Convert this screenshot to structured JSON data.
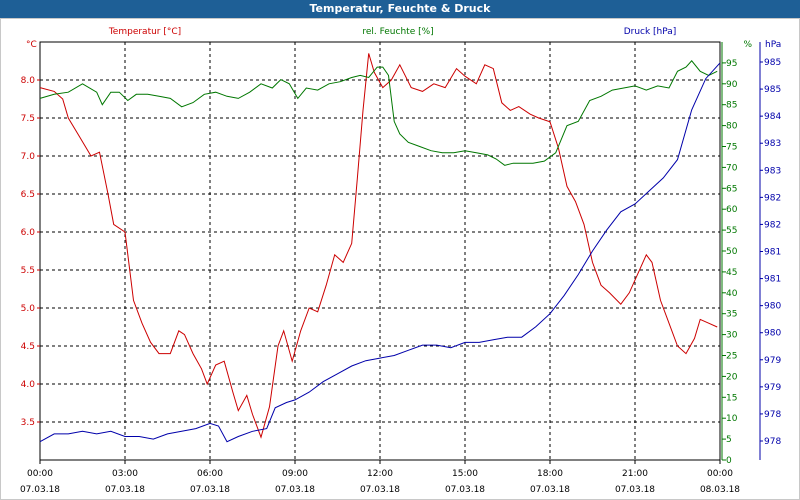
{
  "window": {
    "title": "Temperatur, Feuchte & Druck"
  },
  "chart_data": {
    "type": "line",
    "title": "Temperatur, Feuchte & Druck",
    "colors": {
      "temperature": "#cc0000",
      "humidity": "#007700",
      "pressure": "#0000aa"
    },
    "x_ticks": [
      {
        "time": "00:00",
        "date": "07.03.18"
      },
      {
        "time": "03:00",
        "date": "07.03.18"
      },
      {
        "time": "06:00",
        "date": "07.03.18"
      },
      {
        "time": "09:00",
        "date": "07.03.18"
      },
      {
        "time": "12:00",
        "date": "07.03.18"
      },
      {
        "time": "15:00",
        "date": "07.03.18"
      },
      {
        "time": "18:00",
        "date": "07.03.18"
      },
      {
        "time": "21:00",
        "date": "07.03.18"
      },
      {
        "time": "00:00",
        "date": "08.03.18"
      }
    ],
    "xlim": [
      0,
      24
    ],
    "axes": {
      "temperature": {
        "label": "Temperatur [°C]",
        "unit": "°C",
        "ylim": [
          3.0,
          8.5
        ],
        "ticks": [
          "3.5",
          "4.0",
          "4.5",
          "5.0",
          "5.5",
          "6.0",
          "6.5",
          "7.0",
          "7.5",
          "8.0"
        ]
      },
      "humidity": {
        "label": "rel. Feuchte [%]",
        "unit": "%",
        "ylim": [
          0,
          100
        ],
        "ticks": [
          "0",
          "5",
          "10",
          "15",
          "20",
          "25",
          "30",
          "35",
          "40",
          "45",
          "50",
          "55",
          "60",
          "65",
          "70",
          "75",
          "80",
          "85",
          "90",
          "95"
        ]
      },
      "pressure": {
        "label": "Druck [hPa]",
        "unit": "hPa",
        "ylim": [
          977.6,
          985.6
        ],
        "ticks": [
          "978",
          "978",
          "979",
          "979",
          "980",
          "980",
          "981",
          "981",
          "982",
          "982",
          "983",
          "983",
          "984",
          "985",
          "985"
        ]
      }
    },
    "series": [
      {
        "name": "Temperatur [°C]",
        "axis": "temperature",
        "points": [
          [
            0,
            7.9
          ],
          [
            0.5,
            7.85
          ],
          [
            0.8,
            7.75
          ],
          [
            1.0,
            7.5
          ],
          [
            1.4,
            7.25
          ],
          [
            1.8,
            7.0
          ],
          [
            2.1,
            7.05
          ],
          [
            2.4,
            6.5
          ],
          [
            2.6,
            6.1
          ],
          [
            3.0,
            6.0
          ],
          [
            3.3,
            5.1
          ],
          [
            3.6,
            4.8
          ],
          [
            3.9,
            4.55
          ],
          [
            4.2,
            4.4
          ],
          [
            4.6,
            4.4
          ],
          [
            4.9,
            4.7
          ],
          [
            5.1,
            4.65
          ],
          [
            5.4,
            4.4
          ],
          [
            5.7,
            4.2
          ],
          [
            5.9,
            4.0
          ],
          [
            6.2,
            4.25
          ],
          [
            6.5,
            4.3
          ],
          [
            6.8,
            3.9
          ],
          [
            7.0,
            3.65
          ],
          [
            7.3,
            3.85
          ],
          [
            7.5,
            3.6
          ],
          [
            7.8,
            3.3
          ],
          [
            8.1,
            3.7
          ],
          [
            8.4,
            4.5
          ],
          [
            8.6,
            4.7
          ],
          [
            8.9,
            4.3
          ],
          [
            9.2,
            4.7
          ],
          [
            9.5,
            5.0
          ],
          [
            9.8,
            4.95
          ],
          [
            10.1,
            5.3
          ],
          [
            10.4,
            5.7
          ],
          [
            10.7,
            5.6
          ],
          [
            11.0,
            5.85
          ],
          [
            11.2,
            6.7
          ],
          [
            11.4,
            7.6
          ],
          [
            11.6,
            8.35
          ],
          [
            11.8,
            8.1
          ],
          [
            12.1,
            7.9
          ],
          [
            12.4,
            8.0
          ],
          [
            12.7,
            8.2
          ],
          [
            13.1,
            7.9
          ],
          [
            13.5,
            7.85
          ],
          [
            13.9,
            7.95
          ],
          [
            14.3,
            7.9
          ],
          [
            14.7,
            8.15
          ],
          [
            15.0,
            8.05
          ],
          [
            15.4,
            7.95
          ],
          [
            15.7,
            8.2
          ],
          [
            16.0,
            8.15
          ],
          [
            16.3,
            7.7
          ],
          [
            16.6,
            7.6
          ],
          [
            16.9,
            7.65
          ],
          [
            17.3,
            7.55
          ],
          [
            17.6,
            7.5
          ],
          [
            18.0,
            7.45
          ],
          [
            18.3,
            7.1
          ],
          [
            18.6,
            6.6
          ],
          [
            18.9,
            6.4
          ],
          [
            19.2,
            6.1
          ],
          [
            19.5,
            5.6
          ],
          [
            19.8,
            5.3
          ],
          [
            20.1,
            5.2
          ],
          [
            20.5,
            5.05
          ],
          [
            20.8,
            5.2
          ],
          [
            21.1,
            5.45
          ],
          [
            21.4,
            5.7
          ],
          [
            21.6,
            5.6
          ],
          [
            21.9,
            5.1
          ],
          [
            22.2,
            4.8
          ],
          [
            22.5,
            4.5
          ],
          [
            22.8,
            4.4
          ],
          [
            23.1,
            4.6
          ],
          [
            23.3,
            4.85
          ],
          [
            23.6,
            4.8
          ],
          [
            23.9,
            4.75
          ]
        ]
      },
      {
        "name": "rel. Feuchte [%]",
        "axis": "humidity",
        "points": [
          [
            0,
            86.5
          ],
          [
            0.5,
            87.5
          ],
          [
            1.0,
            88
          ],
          [
            1.5,
            90
          ],
          [
            2.0,
            88
          ],
          [
            2.2,
            85
          ],
          [
            2.5,
            88
          ],
          [
            2.8,
            88
          ],
          [
            3.1,
            86
          ],
          [
            3.4,
            87.5
          ],
          [
            3.8,
            87.5
          ],
          [
            4.2,
            87
          ],
          [
            4.6,
            86.5
          ],
          [
            5.0,
            84.5
          ],
          [
            5.4,
            85.5
          ],
          [
            5.8,
            87.5
          ],
          [
            6.2,
            88
          ],
          [
            6.6,
            87
          ],
          [
            7.0,
            86.5
          ],
          [
            7.4,
            88
          ],
          [
            7.8,
            90
          ],
          [
            8.2,
            89
          ],
          [
            8.5,
            91
          ],
          [
            8.8,
            90
          ],
          [
            9.1,
            86.5
          ],
          [
            9.4,
            89
          ],
          [
            9.8,
            88.5
          ],
          [
            10.2,
            90
          ],
          [
            10.6,
            90.5
          ],
          [
            11.0,
            91.5
          ],
          [
            11.3,
            92
          ],
          [
            11.6,
            91.5
          ],
          [
            11.9,
            94
          ],
          [
            12.1,
            94
          ],
          [
            12.3,
            92
          ],
          [
            12.5,
            81
          ],
          [
            12.7,
            78
          ],
          [
            13.0,
            76
          ],
          [
            13.4,
            75
          ],
          [
            13.8,
            74
          ],
          [
            14.2,
            73.5
          ],
          [
            14.6,
            73.5
          ],
          [
            15.0,
            74
          ],
          [
            15.4,
            73.5
          ],
          [
            15.8,
            73
          ],
          [
            16.1,
            72
          ],
          [
            16.4,
            70.5
          ],
          [
            16.7,
            71
          ],
          [
            17.0,
            71
          ],
          [
            17.4,
            71
          ],
          [
            17.8,
            71.5
          ],
          [
            18.2,
            73.5
          ],
          [
            18.6,
            80
          ],
          [
            19.0,
            81
          ],
          [
            19.4,
            86
          ],
          [
            19.8,
            87
          ],
          [
            20.2,
            88.5
          ],
          [
            20.6,
            89
          ],
          [
            21.0,
            89.5
          ],
          [
            21.4,
            88.5
          ],
          [
            21.8,
            89.5
          ],
          [
            22.2,
            89
          ],
          [
            22.5,
            93
          ],
          [
            22.8,
            94
          ],
          [
            23.0,
            95.5
          ],
          [
            23.3,
            93
          ],
          [
            23.6,
            92
          ],
          [
            23.9,
            93
          ]
        ]
      },
      {
        "name": "Druck [hPa]",
        "axis": "pressure",
        "points": [
          [
            0,
            977.95
          ],
          [
            0.5,
            978.1
          ],
          [
            1.0,
            978.1
          ],
          [
            1.5,
            978.15
          ],
          [
            2.0,
            978.1
          ],
          [
            2.5,
            978.15
          ],
          [
            3.0,
            978.05
          ],
          [
            3.5,
            978.05
          ],
          [
            4.0,
            978.0
          ],
          [
            4.5,
            978.1
          ],
          [
            5.0,
            978.15
          ],
          [
            5.5,
            978.2
          ],
          [
            6.0,
            978.3
          ],
          [
            6.3,
            978.25
          ],
          [
            6.6,
            977.95
          ],
          [
            7.0,
            978.05
          ],
          [
            7.5,
            978.15
          ],
          [
            8.0,
            978.2
          ],
          [
            8.3,
            978.6
          ],
          [
            8.7,
            978.7
          ],
          [
            9.0,
            978.75
          ],
          [
            9.5,
            978.9
          ],
          [
            10.0,
            979.1
          ],
          [
            10.5,
            979.25
          ],
          [
            11.0,
            979.4
          ],
          [
            11.5,
            979.5
          ],
          [
            12.0,
            979.55
          ],
          [
            12.5,
            979.6
          ],
          [
            13.0,
            979.7
          ],
          [
            13.5,
            979.8
          ],
          [
            14.0,
            979.8
          ],
          [
            14.5,
            979.75
          ],
          [
            15.0,
            979.85
          ],
          [
            15.5,
            979.85
          ],
          [
            16.0,
            979.9
          ],
          [
            16.5,
            979.95
          ],
          [
            17.0,
            979.95
          ],
          [
            17.5,
            980.15
          ],
          [
            18.0,
            980.4
          ],
          [
            18.5,
            980.75
          ],
          [
            19.0,
            981.15
          ],
          [
            19.5,
            981.6
          ],
          [
            20.0,
            982.0
          ],
          [
            20.5,
            982.35
          ],
          [
            21.0,
            982.5
          ],
          [
            21.5,
            982.75
          ],
          [
            22.0,
            983.0
          ],
          [
            22.5,
            983.35
          ],
          [
            23.0,
            984.3
          ],
          [
            23.5,
            984.9
          ],
          [
            24.0,
            985.2
          ]
        ]
      }
    ]
  }
}
